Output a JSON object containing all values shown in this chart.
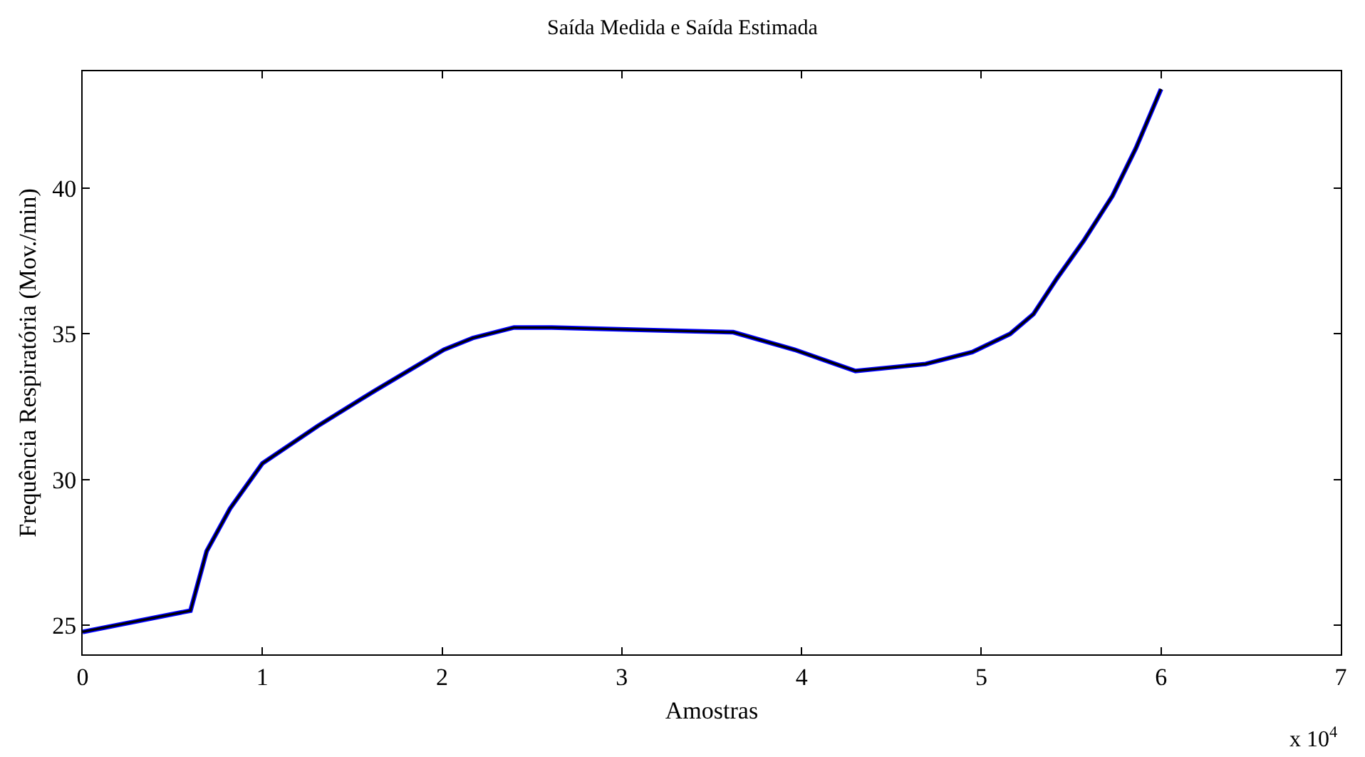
{
  "chart_data": {
    "type": "line",
    "title": "Saída Medida e Saída Estimada",
    "xlabel": "Amostras",
    "ylabel": "Frequência Respiratória (Mov./min)",
    "annotations": [
      "x 10$^{4}$"
    ],
    "xlim": [
      0,
      7
    ],
    "xticks": [
      0,
      1,
      2,
      3,
      4,
      5,
      6,
      7
    ],
    "ylim": [
      24,
      44
    ],
    "yticks": [
      25,
      30,
      35,
      40
    ],
    "x": [
      0,
      0.6,
      0.69,
      0.82,
      1.0,
      1.31,
      1.63,
      2.01,
      2.17,
      2.4,
      2.61,
      3.29,
      3.62,
      3.96,
      4.3,
      4.69,
      4.95,
      5.16,
      5.29,
      5.42,
      5.57,
      5.73,
      5.86,
      6.0
    ],
    "series": [
      {
        "color": "#0000ff",
        "values": [
          24.77,
          25.5,
          27.54,
          29.0,
          30.55,
          31.84,
          33.06,
          34.45,
          34.85,
          35.21,
          35.21,
          35.1,
          35.05,
          34.45,
          33.72,
          33.96,
          34.37,
          34.99,
          35.67,
          36.89,
          38.19,
          39.73,
          41.36,
          43.39
        ]
      },
      {
        "color": "#000000",
        "values": [
          24.77,
          25.5,
          27.54,
          29.0,
          30.55,
          31.84,
          33.06,
          34.45,
          34.85,
          35.21,
          35.21,
          35.1,
          35.05,
          34.45,
          33.72,
          33.96,
          34.37,
          34.99,
          35.67,
          36.89,
          38.19,
          39.73,
          41.36,
          43.39
        ]
      }
    ]
  }
}
